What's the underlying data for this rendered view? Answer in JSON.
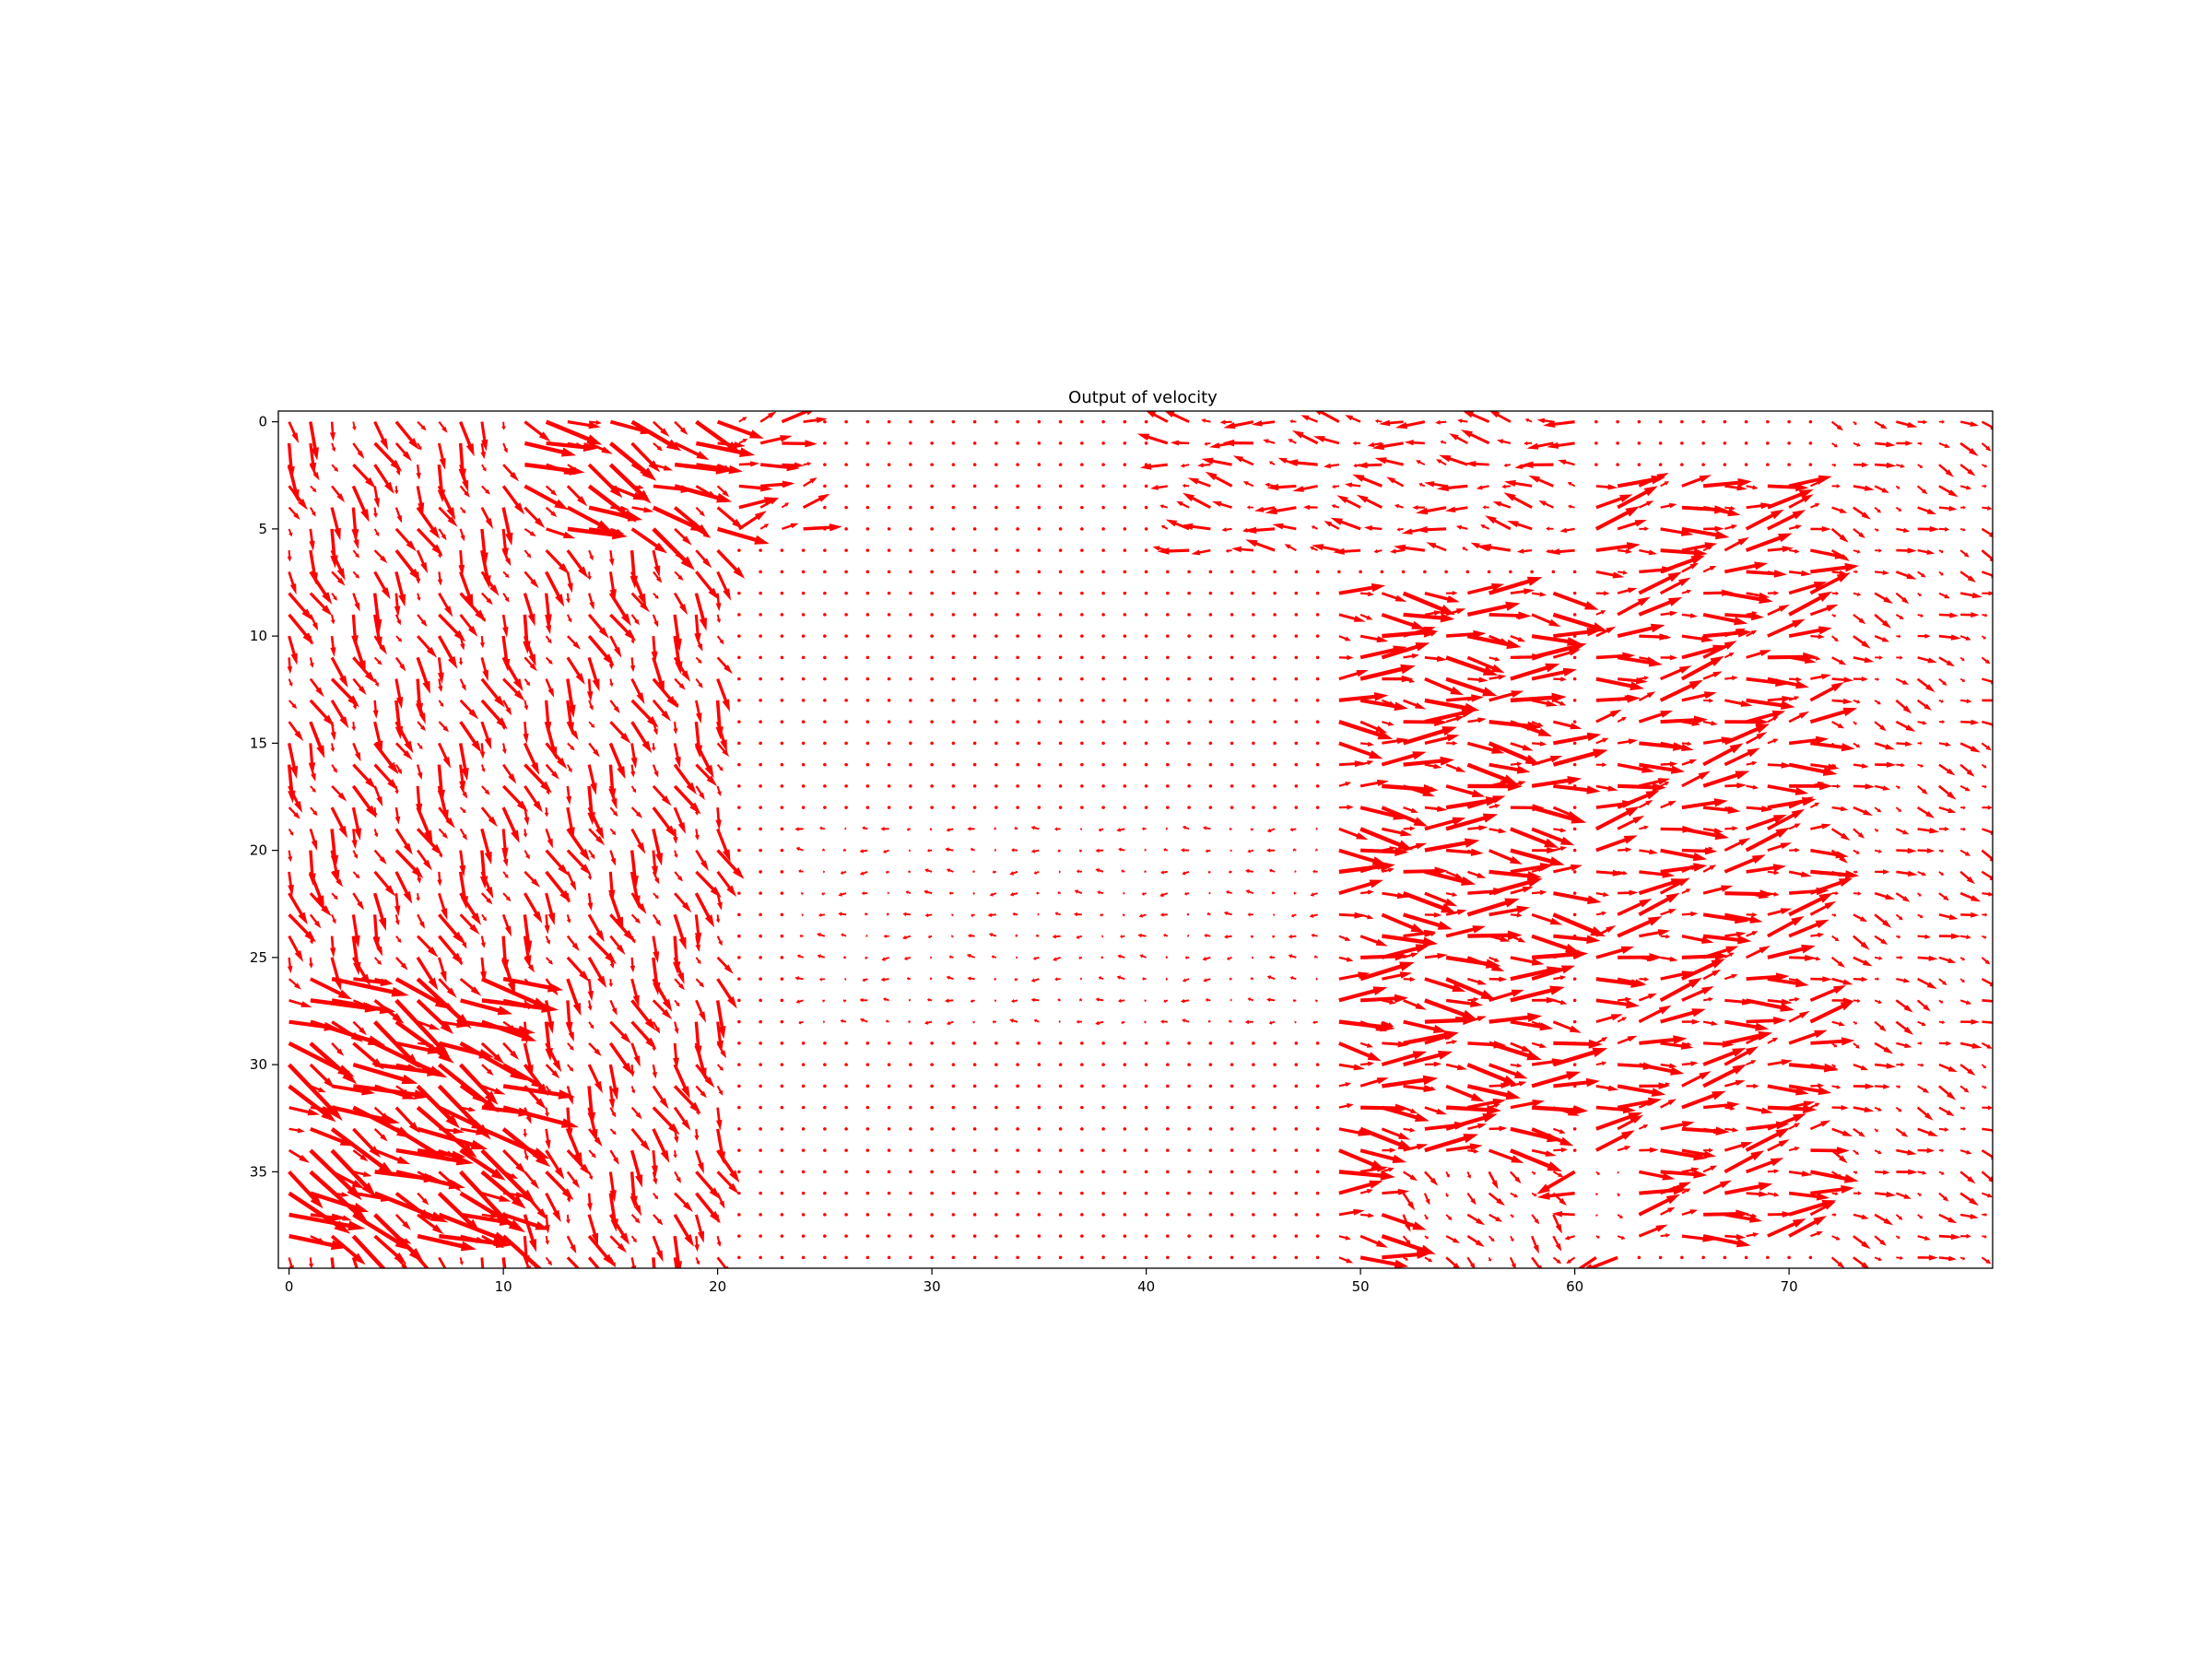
{
  "chart_data": {
    "type": "quiver",
    "title": "Output of velocity",
    "xlabel": "",
    "ylabel": "",
    "grid_cols": 80,
    "grid_rows": 40,
    "x_ticks": [
      0,
      10,
      20,
      30,
      40,
      50,
      60,
      70
    ],
    "y_ticks": [
      0,
      5,
      10,
      15,
      20,
      25,
      30,
      35
    ],
    "xlim": [
      -0.5,
      79.5
    ],
    "ylim": [
      39.5,
      -0.5
    ],
    "y_axis_inverted": true,
    "grid": false,
    "arrow_color": "#ff0000",
    "flow_regions": [
      {
        "name": "left diagonal band",
        "x_range": [
          0,
          20
        ],
        "y_range": [
          0,
          39
        ],
        "dx": 0.45,
        "dy": 1.0,
        "magnitude": 1.6
      },
      {
        "name": "bottom-left inflow",
        "x_range": [
          0,
          10
        ],
        "y_range": [
          26,
          38
        ],
        "dx": 1.0,
        "dy": 0.0,
        "magnitude": 2.2
      },
      {
        "name": "top arc",
        "x_range": [
          11,
          24
        ],
        "y_range": [
          0,
          5
        ],
        "dx": 1.0,
        "dy": -0.25,
        "magnitude": 1.6
      },
      {
        "name": "center channel",
        "x_range": [
          24,
          48
        ],
        "y_range": [
          19,
          28
        ],
        "dx": -1.0,
        "dy": 0.0,
        "magnitude": 0.35
      },
      {
        "name": "top right inflow",
        "x_range": [
          41,
          60
        ],
        "y_range": [
          0,
          6
        ],
        "dx": -1.0,
        "dy": -0.15,
        "magnitude": 1.3
      },
      {
        "name": "right block 1",
        "x_range": [
          49,
          59
        ],
        "y_range": [
          8,
          39
        ],
        "dx": 1.0,
        "dy": 0.05,
        "magnitude": 2.3
      },
      {
        "name": "right block 2",
        "x_range": [
          61,
          71
        ],
        "y_range": [
          3,
          38
        ],
        "dx": 1.0,
        "dy": -0.15,
        "magnitude": 2.0
      },
      {
        "name": "bottom vortex",
        "x_range": [
          52,
          62
        ],
        "y_range": [
          35,
          39
        ],
        "dx": -1.0,
        "dy": 0.3,
        "magnitude": 1.8
      },
      {
        "name": "far right column",
        "x_range": [
          72,
          79
        ],
        "y_range": [
          0,
          39
        ],
        "dx": 0.8,
        "dy": 0.3,
        "magnitude": 0.9
      }
    ]
  }
}
